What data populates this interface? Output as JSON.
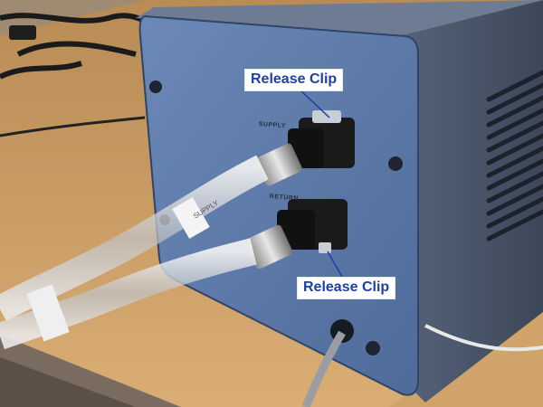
{
  "callouts": {
    "top": "Release Clip",
    "bottom": "Release Clip"
  },
  "panel": {
    "supply_label": "SUPPLY",
    "return_label": "RETURN"
  },
  "tube_tag": "SUPPLY",
  "colors": {
    "bench": "#cfa36a",
    "floor": "#6c6058",
    "panel": "#5b78a8",
    "housing": "#4e5c74",
    "callout_text": "#1f3fa8",
    "callout_bg": "#ffffff"
  }
}
